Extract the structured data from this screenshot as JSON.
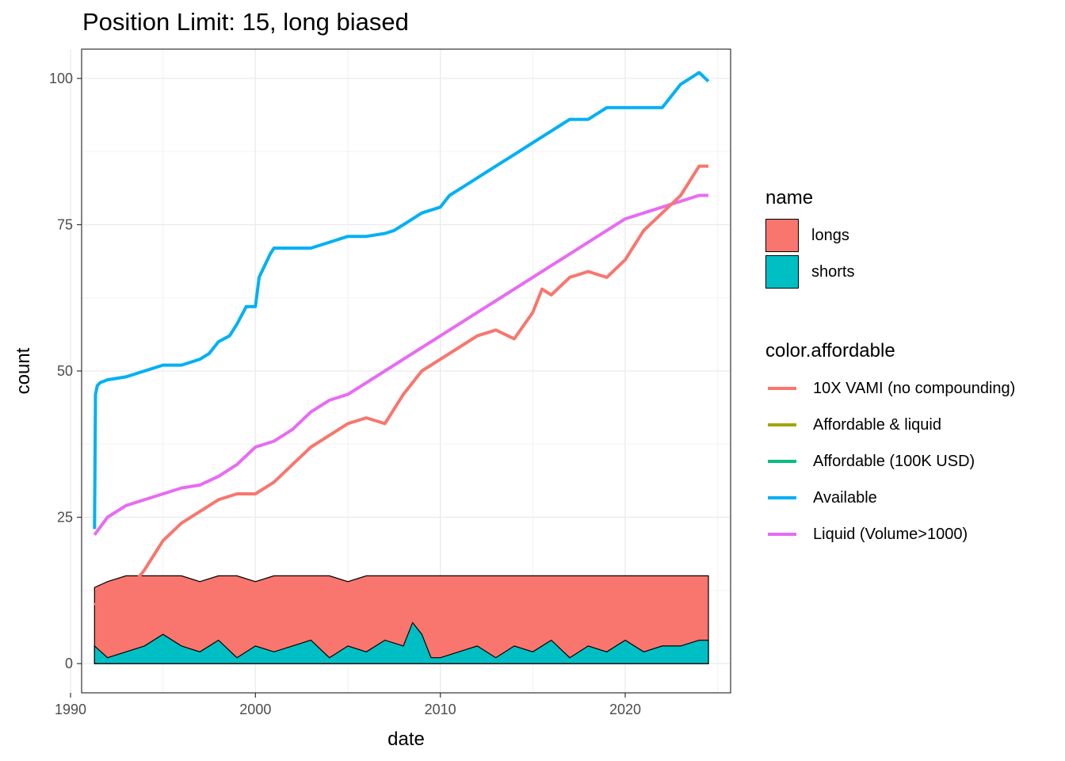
{
  "chart_data": {
    "type": "line",
    "title": "Position Limit: 15, long biased",
    "xlabel": "date",
    "ylabel": "count",
    "xlim": [
      1990.6,
      2025.7
    ],
    "ylim": [
      -5,
      105
    ],
    "x_ticks": [
      "1990",
      "2000",
      "2010",
      "2020"
    ],
    "x_tick_values": [
      1990,
      2000,
      2010,
      2020
    ],
    "y_ticks": [
      "0",
      "25",
      "50",
      "75",
      "100"
    ],
    "y_tick_values": [
      0,
      25,
      50,
      75,
      100
    ],
    "grid": true,
    "legend_placement": "right",
    "fill_legend": {
      "title": "name",
      "items": [
        {
          "name": "longs",
          "color": "#F8766D"
        },
        {
          "name": "shorts",
          "color": "#00BFC4"
        }
      ]
    },
    "color_legend": {
      "title": "color.affordable",
      "items": [
        {
          "name": "10X VAMI (no compounding)",
          "color": "#F8766D"
        },
        {
          "name": "Affordable & liquid",
          "color": "#A3A500"
        },
        {
          "name": "Affordable (100K USD)",
          "color": "#00BF7D"
        },
        {
          "name": "Available",
          "color": "#00B0F6"
        },
        {
          "name": "Liquid (Volume>1000)",
          "color": "#E76BF3"
        }
      ]
    },
    "series": [
      {
        "name": "Available",
        "color": "#00B0F6",
        "x": [
          1991.3,
          1991.35,
          1991.45,
          1991.6,
          1992.0,
          1993.0,
          1994.0,
          1995.0,
          1996.0,
          1997.0,
          1997.5,
          1998.0,
          1998.6,
          1999.0,
          1999.5,
          2000.0,
          2000.2,
          2000.5,
          2000.8,
          2001.0,
          2002.0,
          2003.0,
          2004.0,
          2005.0,
          2006.0,
          2007.0,
          2007.5,
          2008.0,
          2008.5,
          2009.0,
          2010.0,
          2010.5,
          2011.0,
          2011.5,
          2012.0,
          2012.5,
          2013.0,
          2013.5,
          2014.0,
          2014.5,
          2015.0,
          2015.5,
          2016.0,
          2016.5,
          2017.0,
          2018.0,
          2018.5,
          2019.0,
          2020.0,
          2021.0,
          2022.0,
          2022.5,
          2023.0,
          2023.5,
          2024.0,
          2024.5
        ],
        "values": [
          23,
          46,
          47.5,
          48,
          48.5,
          49,
          50,
          51,
          51,
          52,
          53,
          55,
          56,
          58,
          61,
          61,
          66,
          68,
          70,
          71,
          71,
          71,
          72,
          73,
          73,
          73.5,
          74,
          75,
          76,
          77,
          78,
          80,
          81,
          82,
          83,
          84,
          85,
          86,
          87,
          88,
          89,
          90,
          91,
          92,
          93,
          93,
          94,
          95,
          95,
          95,
          95,
          97,
          99,
          100,
          101,
          99.5
        ]
      },
      {
        "name": "Liquid (Volume>1000)",
        "color": "#E76BF3",
        "x": [
          1991.3,
          1992.0,
          1993.0,
          1994.0,
          1995.0,
          1996.0,
          1997.0,
          1998.0,
          1999.0,
          2000.0,
          2001.0,
          2002.0,
          2003.0,
          2004.0,
          2005.0,
          2006.0,
          2007.0,
          2008.0,
          2009.0,
          2010.0,
          2011.0,
          2012.0,
          2013.0,
          2014.0,
          2015.0,
          2016.0,
          2017.0,
          2018.0,
          2019.0,
          2020.0,
          2021.0,
          2022.0,
          2023.0,
          2024.0,
          2024.5
        ],
        "values": [
          22,
          25,
          27,
          28,
          29,
          30,
          30.5,
          32,
          34,
          37,
          38,
          40,
          43,
          45,
          46,
          48,
          50,
          52,
          54,
          56,
          58,
          60,
          62,
          64,
          66,
          68,
          70,
          72,
          74,
          76,
          77,
          78,
          79,
          80,
          80
        ]
      },
      {
        "name": "10X VAMI (no compounding)",
        "color": "#F8766D",
        "x": [
          1991.3,
          1992.0,
          1993.0,
          1994.0,
          1995.0,
          1996.0,
          1997.0,
          1998.0,
          1999.0,
          2000.0,
          2001.0,
          2002.0,
          2003.0,
          2004.0,
          2005.0,
          2006.0,
          2007.0,
          2008.0,
          2009.0,
          2010.0,
          2011.0,
          2012.0,
          2013.0,
          2014.0,
          2015.0,
          2015.5,
          2016.0,
          2017.0,
          2018.0,
          2019.0,
          2020.0,
          2021.0,
          2022.0,
          2023.0,
          2024.0,
          2024.5
        ],
        "values": [
          10,
          11.5,
          12,
          16,
          21,
          24,
          26,
          28,
          29,
          29,
          31,
          34,
          37,
          39,
          41,
          42,
          41,
          46,
          50,
          52,
          54,
          56,
          57,
          55.5,
          60,
          64,
          63,
          66,
          67,
          66,
          69,
          74,
          77,
          80,
          85,
          85
        ]
      }
    ],
    "area_series": [
      {
        "name": "longs",
        "color": "#F8766D",
        "x": [
          1991.3,
          1992.0,
          1993.0,
          1994.0,
          1995.0,
          1996.0,
          1997.0,
          1998.0,
          1999.0,
          2000.0,
          2001.0,
          2002.0,
          2003.0,
          2004.0,
          2005.0,
          2006.0,
          2007.0,
          2008.0,
          2009.0,
          2010.0,
          2011.0,
          2012.0,
          2013.0,
          2014.0,
          2015.0,
          2016.0,
          2017.0,
          2018.0,
          2019.0,
          2020.0,
          2021.0,
          2022.0,
          2023.0,
          2024.0,
          2024.5
        ],
        "values": [
          13,
          14,
          15,
          15,
          15,
          15,
          14,
          15,
          15,
          14,
          15,
          15,
          15,
          15,
          14,
          15,
          15,
          15,
          15,
          15,
          15,
          15,
          15,
          15,
          15,
          15,
          15,
          15,
          15,
          15,
          15,
          15,
          15,
          15,
          15
        ]
      },
      {
        "name": "shorts",
        "color": "#00BFC4",
        "x": [
          1991.3,
          1992.0,
          1993.0,
          1994.0,
          1995.0,
          1996.0,
          1997.0,
          1998.0,
          1999.0,
          2000.0,
          2001.0,
          2002.0,
          2003.0,
          2004.0,
          2005.0,
          2006.0,
          2007.0,
          2008.0,
          2008.5,
          2009.0,
          2009.5,
          2010.0,
          2011.0,
          2012.0,
          2013.0,
          2014.0,
          2015.0,
          2016.0,
          2017.0,
          2018.0,
          2019.0,
          2020.0,
          2021.0,
          2022.0,
          2023.0,
          2024.0,
          2024.5
        ],
        "values": [
          3,
          1,
          2,
          3,
          5,
          3,
          2,
          4,
          1,
          3,
          2,
          3,
          4,
          1,
          3,
          2,
          4,
          3,
          7,
          5,
          1,
          1,
          2,
          3,
          1,
          3,
          2,
          4,
          1,
          3,
          2,
          4,
          2,
          3,
          3,
          4,
          4
        ]
      }
    ]
  }
}
